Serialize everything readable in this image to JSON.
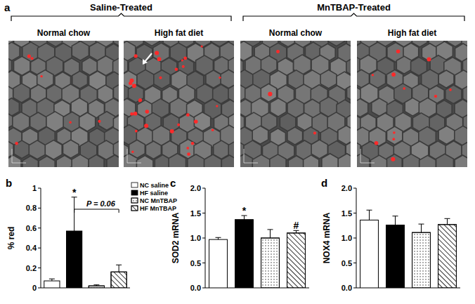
{
  "figure_a": {
    "label": "a",
    "groups": [
      {
        "title": "Saline-Treated",
        "images": [
          "Normal chow",
          "High fat diet"
        ]
      },
      {
        "title": "MnTBAP-Treated",
        "images": [
          "Normal chow",
          "High fat diet"
        ]
      }
    ]
  },
  "chart_data": [
    {
      "type": "bar",
      "title": "b",
      "y_label": "% red",
      "categories": [
        "NC saline",
        "HF saline",
        "NC MnTBAP",
        "HF MnTBAP"
      ],
      "values": [
        0.07,
        0.57,
        0.02,
        0.16
      ],
      "errors": [
        0.02,
        0.34,
        0.01,
        0.07
      ],
      "colors": [
        "#ffffff",
        "#000000",
        "#ffffff",
        "#ffffff"
      ],
      "ylim": [
        0,
        1
      ],
      "yticks": [
        0,
        0.2,
        0.4,
        0.6,
        0.8,
        1
      ],
      "legend": "upper right",
      "tick_labels": "y",
      "annotations": [
        {
          "text": "*",
          "at": 1
        },
        {
          "text": "P = 0.06",
          "from": 1,
          "to": 3
        }
      ]
    },
    {
      "type": "bar",
      "title": "c",
      "y_label": "SOD2 mRNA",
      "categories": [
        null,
        null,
        null,
        null
      ],
      "values": [
        0.97,
        1.37,
        1.0,
        1.1
      ],
      "errors": [
        0.04,
        0.08,
        0.17,
        0.05
      ],
      "colors": [
        "#ffffff",
        "#000000",
        "#ffffff",
        "#ffffff"
      ],
      "ylim": [
        0,
        2
      ],
      "yticks": [
        {
          "value": 0,
          "label": "0.0"
        },
        0.5,
        {
          "value": 1,
          "label": "1.0"
        },
        1.5,
        {
          "value": 2,
          "label": "2.0"
        }
      ],
      "tick_labels": "y",
      "annotations": [
        {
          "text": "*",
          "at": 1
        },
        {
          "text": "#",
          "at": 3
        }
      ]
    },
    {
      "type": "bar",
      "title": "d",
      "y_label": "NOX4 mRNA",
      "categories": [
        null,
        null,
        null,
        null
      ],
      "values": [
        1.36,
        1.26,
        1.11,
        1.27
      ],
      "errors": [
        0.2,
        0.18,
        0.17,
        0.12
      ],
      "colors": [
        "#ffffff",
        "#000000",
        "#ffffff",
        "#ffffff"
      ],
      "ylim": [
        0,
        2
      ],
      "yticks": [
        {
          "value": 0,
          "label": "0.0"
        },
        0.5,
        {
          "value": 1,
          "label": "1.0"
        },
        1.5,
        {
          "value": 2,
          "label": "2.0"
        }
      ],
      "tick_labels": "y"
    }
  ]
}
